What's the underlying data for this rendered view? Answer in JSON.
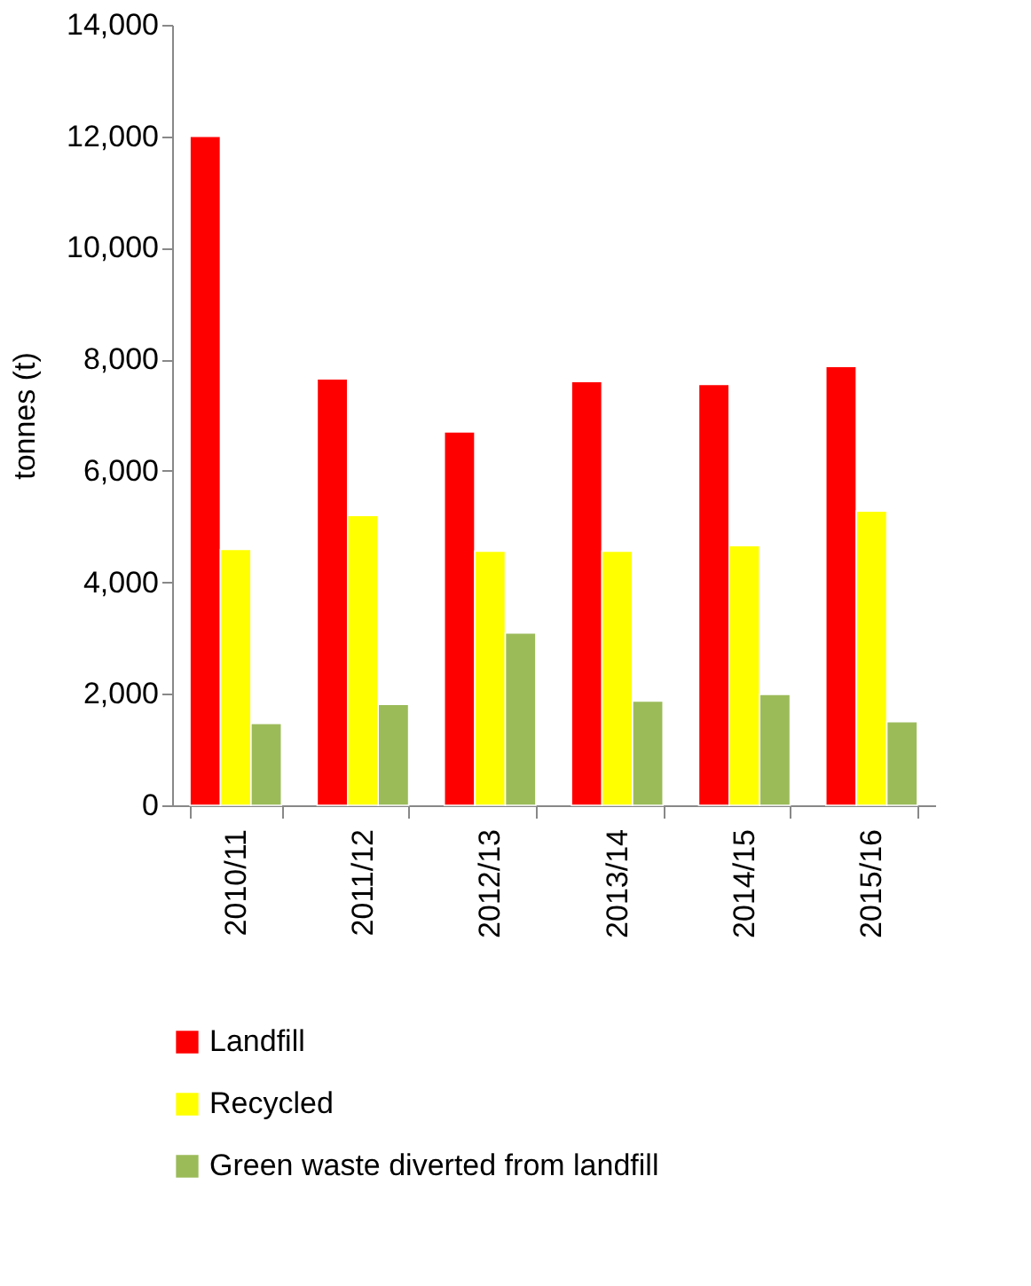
{
  "chart_data": {
    "type": "bar",
    "ylabel": "tonnes (t)",
    "categories": [
      "2010/11",
      "2011/12",
      "2012/13",
      "2013/14",
      "2014/15",
      "2015/16"
    ],
    "series": [
      {
        "name": "Landfill",
        "color": "#ff0000",
        "values": [
          12000,
          7650,
          6700,
          7600,
          7550,
          7870
        ]
      },
      {
        "name": "Recycled",
        "color": "#ffff00",
        "values": [
          4590,
          5200,
          4560,
          4560,
          4660,
          5280
        ]
      },
      {
        "name": "Green waste diverted from landfill",
        "color": "#9bbb59",
        "values": [
          1470,
          1810,
          3090,
          1870,
          1990,
          1500
        ]
      }
    ],
    "ylim": [
      0,
      14000
    ],
    "yticks": [
      0,
      {
        "value": 2000,
        "label": "2,000"
      },
      {
        "value": 4000,
        "label": "4,000"
      },
      {
        "value": 6000,
        "label": "6,000"
      },
      {
        "value": 8000,
        "label": "8,000"
      },
      {
        "value": 10000,
        "label": "10,000"
      },
      {
        "value": 12000,
        "label": "12,000"
      },
      {
        "value": 14000,
        "label": "14,000"
      }
    ],
    "grid": false,
    "legend": "bottom"
  }
}
